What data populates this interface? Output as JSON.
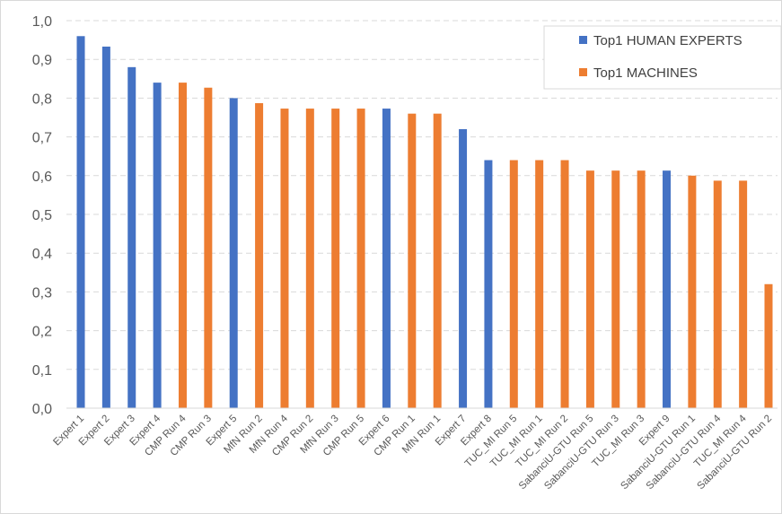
{
  "chart_data": {
    "type": "bar",
    "title": "",
    "xlabel": "",
    "ylabel": "",
    "ylim": [
      0,
      1.0
    ],
    "yticks": [
      "0,0",
      "0,1",
      "0,2",
      "0,3",
      "0,4",
      "0,5",
      "0,6",
      "0,7",
      "0,8",
      "0,9",
      "1,0"
    ],
    "grid": "horizontal dashed",
    "legend_position": "top-right",
    "series": [
      {
        "name": "Top1 HUMAN EXPERTS",
        "color": "#4472C4"
      },
      {
        "name": "Top1 MACHINES",
        "color": "#ED7D31"
      }
    ],
    "categories": [
      "Expert 1",
      "Expert 2",
      "Expert 3",
      "Expert 4",
      "CMP Run 4",
      "CMP Run 3",
      "Expert 5",
      "MfN Run 2",
      "MfN Run 4",
      "CMP Run 2",
      "MfN Run 3",
      "CMP Run 5",
      "Expert 6",
      "CMP Run 1",
      "MfN Run 1",
      "Expert 7",
      "Expert 8",
      "TUC_MI Run 5",
      "TUC_MI Run 1",
      "TUC_MI Run 2",
      "SabanciU-GTU Run 5",
      "SabanciU-GTU Run 3",
      "TUC_MI Run 3",
      "Expert 9",
      "SabanciU-GTU Run 1",
      "SabanciU-GTU Run 4",
      "TUC_MI Run 4",
      "SabanciU-GTU Run 2"
    ],
    "values": [
      0.96,
      0.933,
      0.88,
      0.84,
      0.84,
      0.827,
      0.8,
      0.787,
      0.773,
      0.773,
      0.773,
      0.773,
      0.773,
      0.76,
      0.76,
      0.72,
      0.64,
      0.64,
      0.64,
      0.64,
      0.613,
      0.613,
      0.613,
      0.613,
      0.6,
      0.587,
      0.587,
      0.32
    ],
    "series_index": [
      0,
      0,
      0,
      0,
      1,
      1,
      0,
      1,
      1,
      1,
      1,
      1,
      0,
      1,
      1,
      0,
      0,
      1,
      1,
      1,
      1,
      1,
      1,
      0,
      1,
      1,
      1,
      1
    ]
  }
}
